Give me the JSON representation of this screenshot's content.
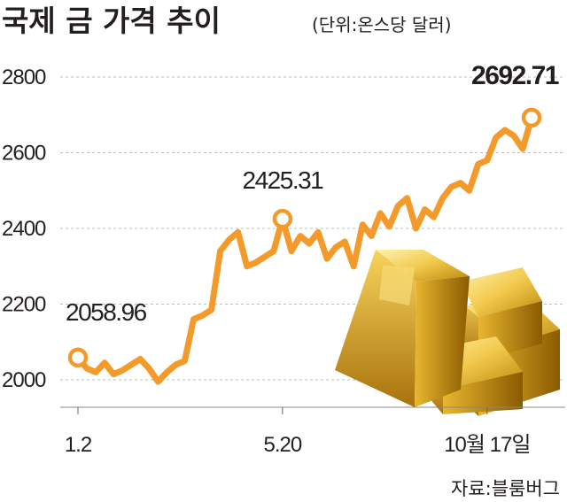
{
  "header": {
    "title": "국제 금 가격 추이",
    "unit": "(단위:온스당 달러)"
  },
  "source": "자료:블룸버그",
  "colors": {
    "line": "#f39a2b",
    "grid": "#bdbdbd",
    "text": "#231f20",
    "gold": "#d9a520"
  },
  "illustration": {
    "icon": "gold-bars-icon"
  },
  "chart_data": {
    "type": "line",
    "ylim": [
      2000,
      2800
    ],
    "yticks": [
      2000,
      2200,
      2400,
      2600,
      2800
    ],
    "xtick_labels": [
      {
        "index": 0,
        "label": "1.2"
      },
      {
        "index": 23,
        "label": "5.20"
      },
      {
        "index": 46,
        "label": "10월 17일"
      }
    ],
    "grid": "horizontal dashed",
    "series": [
      {
        "values": [
          2058.96,
          2030,
          2020,
          2045,
          2015,
          2025,
          2040,
          2055,
          2030,
          1995,
          2020,
          2040,
          2050,
          2160,
          2170,
          2185,
          2340,
          2370,
          2390,
          2300,
          2310,
          2325,
          2340,
          2425.31,
          2340,
          2380,
          2360,
          2390,
          2320,
          2350,
          2365,
          2300,
          2410,
          2380,
          2440,
          2405,
          2460,
          2480,
          2400,
          2450,
          2430,
          2480,
          2510,
          2520,
          2500,
          2570,
          2580,
          2640,
          2660,
          2645,
          2610,
          2692.71
        ]
      }
    ],
    "annotations": [
      {
        "index": 0,
        "text": "2058.96",
        "marker": "circle"
      },
      {
        "index": 23,
        "text": "2425.31",
        "marker": "circle"
      },
      {
        "index": 51,
        "text": "2692.71",
        "marker": "circle",
        "bold": true
      }
    ]
  }
}
